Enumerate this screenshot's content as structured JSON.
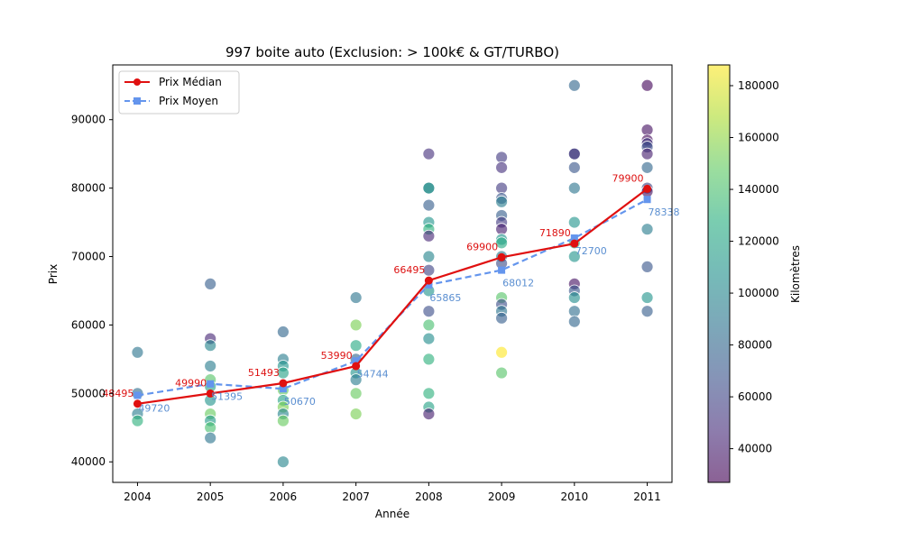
{
  "chart_data": {
    "type": "scatter",
    "title": "997 boite auto (Exclusion: > 100k€ & GT/TURBO)",
    "xlabel": "Année",
    "ylabel": "Prix",
    "xticks": [
      "2004",
      "2005",
      "2006",
      "2007",
      "2008",
      "2009",
      "2010",
      "2011"
    ],
    "xlim": [
      2003.66,
      2011.34
    ],
    "ylim": [
      37000,
      98000
    ],
    "yticks": [
      40000,
      50000,
      60000,
      70000,
      80000,
      90000
    ],
    "ytick_labels": [
      "40000",
      "50000",
      "60000",
      "70000",
      "80000",
      "90000"
    ],
    "grid": false,
    "legend_position": "top-left",
    "colorbar": {
      "label": "Kilomètres",
      "min": 27000,
      "max": 188000,
      "ticks": [
        40000,
        60000,
        80000,
        100000,
        120000,
        140000,
        160000,
        180000
      ],
      "tick_labels": [
        "40000",
        "60000",
        "80000",
        "100000",
        "120000",
        "140000",
        "160000",
        "180000"
      ],
      "colormap": "viridis"
    },
    "scatter_points": [
      {
        "year": 2004,
        "price": 56000,
        "km": 90000
      },
      {
        "year": 2004,
        "price": 50000,
        "km": 85000
      },
      {
        "year": 2004,
        "price": 47000,
        "km": 95000
      },
      {
        "year": 2004,
        "price": 46000,
        "km": 130000
      },
      {
        "year": 2005,
        "price": 66000,
        "km": 75000
      },
      {
        "year": 2005,
        "price": 58000,
        "km": 45000
      },
      {
        "year": 2005,
        "price": 57000,
        "km": 100000
      },
      {
        "year": 2005,
        "price": 54000,
        "km": 95000
      },
      {
        "year": 2005,
        "price": 52000,
        "km": 145000
      },
      {
        "year": 2005,
        "price": 51000,
        "km": 120000
      },
      {
        "year": 2005,
        "price": 49000,
        "km": 110000
      },
      {
        "year": 2005,
        "price": 47000,
        "km": 150000
      },
      {
        "year": 2005,
        "price": 46000,
        "km": 115000
      },
      {
        "year": 2005,
        "price": 45000,
        "km": 140000
      },
      {
        "year": 2005,
        "price": 43500,
        "km": 90000
      },
      {
        "year": 2006,
        "price": 59000,
        "km": 80000
      },
      {
        "year": 2006,
        "price": 55000,
        "km": 95000
      },
      {
        "year": 2006,
        "price": 54000,
        "km": 110000
      },
      {
        "year": 2006,
        "price": 53000,
        "km": 120000
      },
      {
        "year": 2006,
        "price": 50500,
        "km": 150000
      },
      {
        "year": 2006,
        "price": 49000,
        "km": 120000
      },
      {
        "year": 2006,
        "price": 48000,
        "km": 155000
      },
      {
        "year": 2006,
        "price": 47000,
        "km": 100000
      },
      {
        "year": 2006,
        "price": 46000,
        "km": 150000
      },
      {
        "year": 2006,
        "price": 40000,
        "km": 100000
      },
      {
        "year": 2007,
        "price": 64000,
        "km": 90000
      },
      {
        "year": 2007,
        "price": 60000,
        "km": 155000
      },
      {
        "year": 2007,
        "price": 57000,
        "km": 125000
      },
      {
        "year": 2007,
        "price": 55000,
        "km": 80000
      },
      {
        "year": 2007,
        "price": 53000,
        "km": 110000
      },
      {
        "year": 2007,
        "price": 52000,
        "km": 95000
      },
      {
        "year": 2007,
        "price": 50000,
        "km": 150000
      },
      {
        "year": 2007,
        "price": 47000,
        "km": 155000
      },
      {
        "year": 2008,
        "price": 85000,
        "km": 50000
      },
      {
        "year": 2008,
        "price": 80000,
        "km": 120000
      },
      {
        "year": 2008,
        "price": 80000,
        "km": 100000
      },
      {
        "year": 2008,
        "price": 77500,
        "km": 75000
      },
      {
        "year": 2008,
        "price": 75000,
        "km": 110000
      },
      {
        "year": 2008,
        "price": 74000,
        "km": 130000
      },
      {
        "year": 2008,
        "price": 73000,
        "km": 45000
      },
      {
        "year": 2008,
        "price": 70000,
        "km": 100000
      },
      {
        "year": 2008,
        "price": 68000,
        "km": 60000
      },
      {
        "year": 2008,
        "price": 65000,
        "km": 110000
      },
      {
        "year": 2008,
        "price": 62000,
        "km": 65000
      },
      {
        "year": 2008,
        "price": 60000,
        "km": 140000
      },
      {
        "year": 2008,
        "price": 58000,
        "km": 105000
      },
      {
        "year": 2008,
        "price": 55000,
        "km": 130000
      },
      {
        "year": 2008,
        "price": 50000,
        "km": 130000
      },
      {
        "year": 2008,
        "price": 48000,
        "km": 120000
      },
      {
        "year": 2008,
        "price": 47000,
        "km": 40000
      },
      {
        "year": 2009,
        "price": 84500,
        "km": 55000
      },
      {
        "year": 2009,
        "price": 83000,
        "km": 50000
      },
      {
        "year": 2009,
        "price": 80000,
        "km": 55000
      },
      {
        "year": 2009,
        "price": 78500,
        "km": 70000
      },
      {
        "year": 2009,
        "price": 78000,
        "km": 95000
      },
      {
        "year": 2009,
        "price": 76000,
        "km": 75000
      },
      {
        "year": 2009,
        "price": 75000,
        "km": 55000
      },
      {
        "year": 2009,
        "price": 74000,
        "km": 40000
      },
      {
        "year": 2009,
        "price": 72500,
        "km": 110000
      },
      {
        "year": 2009,
        "price": 72000,
        "km": 125000
      },
      {
        "year": 2009,
        "price": 70000,
        "km": 95000
      },
      {
        "year": 2009,
        "price": 69000,
        "km": 65000
      },
      {
        "year": 2009,
        "price": 64000,
        "km": 145000
      },
      {
        "year": 2009,
        "price": 63000,
        "km": 65000
      },
      {
        "year": 2009,
        "price": 62000,
        "km": 90000
      },
      {
        "year": 2009,
        "price": 61000,
        "km": 75000
      },
      {
        "year": 2009,
        "price": 56000,
        "km": 188000
      },
      {
        "year": 2009,
        "price": 53000,
        "km": 145000
      },
      {
        "year": 2010,
        "price": 95000,
        "km": 80000
      },
      {
        "year": 2010,
        "price": 85000,
        "km": 40000
      },
      {
        "year": 2010,
        "price": 85000,
        "km": 60000
      },
      {
        "year": 2010,
        "price": 83000,
        "km": 70000
      },
      {
        "year": 2010,
        "price": 80000,
        "km": 90000
      },
      {
        "year": 2010,
        "price": 75000,
        "km": 110000
      },
      {
        "year": 2010,
        "price": 72000,
        "km": 130000
      },
      {
        "year": 2010,
        "price": 70000,
        "km": 110000
      },
      {
        "year": 2010,
        "price": 66000,
        "km": 35000
      },
      {
        "year": 2010,
        "price": 65000,
        "km": 70000
      },
      {
        "year": 2010,
        "price": 64000,
        "km": 105000
      },
      {
        "year": 2010,
        "price": 62000,
        "km": 85000
      },
      {
        "year": 2010,
        "price": 60500,
        "km": 80000
      },
      {
        "year": 2011,
        "price": 95000,
        "km": 30000
      },
      {
        "year": 2011,
        "price": 88500,
        "km": 35000
      },
      {
        "year": 2011,
        "price": 87000,
        "km": 32000
      },
      {
        "year": 2011,
        "price": 86500,
        "km": 55000
      },
      {
        "year": 2011,
        "price": 86000,
        "km": 65000
      },
      {
        "year": 2011,
        "price": 85000,
        "km": 40000
      },
      {
        "year": 2011,
        "price": 83000,
        "km": 80000
      },
      {
        "year": 2011,
        "price": 80000,
        "km": 60000
      },
      {
        "year": 2011,
        "price": 79500,
        "km": 35000
      },
      {
        "year": 2011,
        "price": 74000,
        "km": 95000
      },
      {
        "year": 2011,
        "price": 68500,
        "km": 70000
      },
      {
        "year": 2011,
        "price": 64000,
        "km": 110000
      },
      {
        "year": 2011,
        "price": 62000,
        "km": 75000
      }
    ],
    "series": [
      {
        "name": "Prix Médian",
        "style": "line-circle",
        "color": "#e01010",
        "x": [
          2004,
          2005,
          2006,
          2007,
          2008,
          2009,
          2010,
          2011
        ],
        "values": [
          48495,
          49990,
          51493,
          53990,
          66495,
          69900,
          71890,
          79900
        ],
        "labels": [
          "48495",
          "49990",
          "51493",
          "53990",
          "66495",
          "69900",
          "71890",
          "79900"
        ]
      },
      {
        "name": "Prix Moyen",
        "style": "dashed-square",
        "color": "#6495ed",
        "x": [
          2004,
          2005,
          2006,
          2007,
          2008,
          2009,
          2010,
          2011
        ],
        "values": [
          49720,
          51395,
          50670,
          54744,
          65865,
          68012,
          72700,
          78338
        ],
        "labels": [
          "49720",
          "51395",
          "50670",
          "54744",
          "65865",
          "68012",
          "72700",
          "78338"
        ]
      }
    ]
  }
}
